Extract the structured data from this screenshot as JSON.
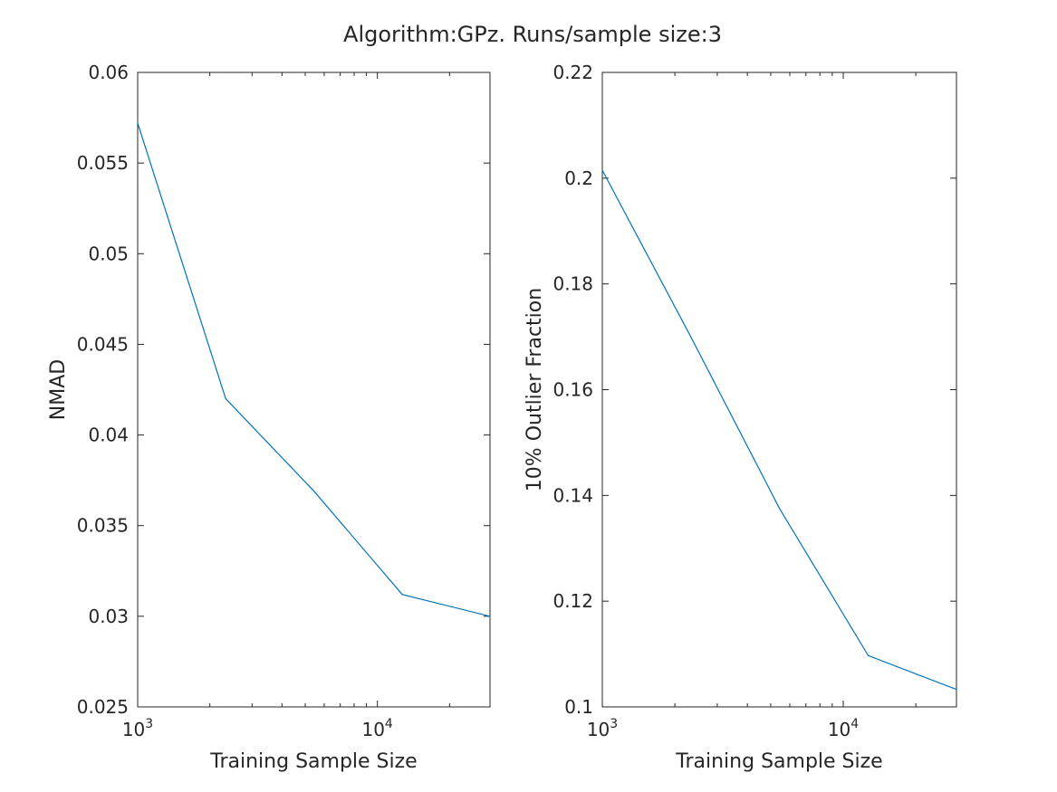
{
  "figure": {
    "title": "Algorithm:GPz. Runs/sample size:3"
  },
  "chart_data": [
    {
      "type": "line",
      "title": "",
      "xlabel": "Training Sample Size",
      "ylabel": "NMAD",
      "xscale": "log",
      "xlim": [
        1000,
        29500
      ],
      "ylim": [
        0.025,
        0.06
      ],
      "yticks": [
        0.025,
        0.03,
        0.035,
        0.04,
        0.045,
        0.05,
        0.055,
        0.06
      ],
      "ytick_labels": [
        "0.025",
        "0.03",
        "0.035",
        "0.04",
        "0.045",
        "0.05",
        "0.055",
        "0.06"
      ],
      "xticks": [
        1000,
        10000
      ],
      "xtick_labels": [
        {
          "base": "10",
          "exp": "3"
        },
        {
          "base": "10",
          "exp": "4"
        }
      ],
      "grid": false,
      "line_color": "#0072BD",
      "series": [
        {
          "x": [
            1000,
            2330,
            5440,
            12700,
            29500
          ],
          "y": [
            0.0572,
            0.042,
            0.0369,
            0.0312,
            0.03
          ]
        }
      ]
    },
    {
      "type": "line",
      "title": "",
      "xlabel": "Training Sample Size",
      "ylabel": "10% Outlier Fraction",
      "xscale": "log",
      "xlim": [
        1000,
        29500
      ],
      "ylim": [
        0.1,
        0.22
      ],
      "yticks": [
        0.1,
        0.12,
        0.14,
        0.16,
        0.18,
        0.2,
        0.22
      ],
      "ytick_labels": [
        "0.1",
        "0.12",
        "0.14",
        "0.16",
        "0.18",
        "0.2",
        "0.22"
      ],
      "xticks": [
        1000,
        10000
      ],
      "xtick_labels": [
        {
          "base": "10",
          "exp": "3"
        },
        {
          "base": "10",
          "exp": "4"
        }
      ],
      "grid": false,
      "line_color": "#0072BD",
      "series": [
        {
          "x": [
            1000,
            2330,
            5440,
            12700,
            29500
          ],
          "y": [
            0.2015,
            0.17,
            0.1375,
            0.1097,
            0.1033
          ]
        }
      ]
    }
  ]
}
